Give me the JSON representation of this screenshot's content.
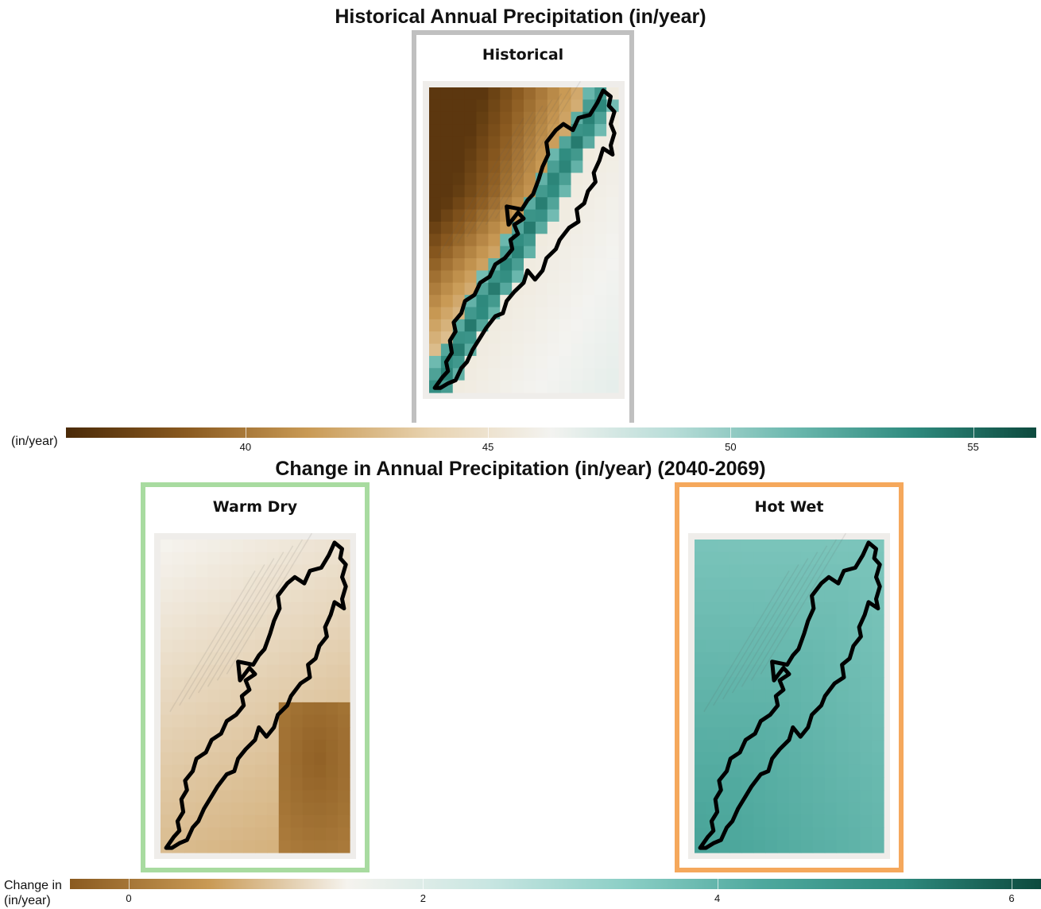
{
  "titles": {
    "historical": "Historical Annual Precipitation (in/year)",
    "change": "Change in Annual Precipitation (in/year) (2040-2069)"
  },
  "panels": {
    "historical": {
      "label": "Historical",
      "border_color": "#c0c0c0"
    },
    "warm_dry": {
      "label": "Warm Dry",
      "border_color": "#a8dba0"
    },
    "hot_wet": {
      "label": "Hot Wet",
      "border_color": "#f5a85c"
    }
  },
  "legends": {
    "historical": {
      "title": "(in/year)",
      "range": [
        36.3,
        56.3
      ],
      "ticks": [
        {
          "value": 40,
          "label": "40"
        },
        {
          "value": 45,
          "label": "45"
        },
        {
          "value": 50,
          "label": "50"
        },
        {
          "value": 55,
          "label": "55"
        }
      ],
      "colors": [
        "#4a2a08",
        "#8a5a20",
        "#c99a55",
        "#e8d3b0",
        "#f3f3f0",
        "#b8ddd8",
        "#6bb8ae",
        "#2e8a7e",
        "#0d4a3e"
      ]
    },
    "change": {
      "title_line1": "Change in",
      "title_line2": "(in/year)",
      "range": [
        -0.4,
        6.2
      ],
      "ticks": [
        {
          "value": 0,
          "label": "0"
        },
        {
          "value": 2,
          "label": "2"
        },
        {
          "value": 4,
          "label": "4"
        },
        {
          "value": 6,
          "label": "6"
        }
      ],
      "colors": [
        "#8a5a20",
        "#c99a55",
        "#f5f3ee",
        "#c9e6e2",
        "#8ccfc6",
        "#4ea89d",
        "#2e8a7e",
        "#0d4a3e"
      ]
    }
  },
  "chart_data": [
    {
      "type": "heatmap",
      "title": "Historical Annual Precipitation (in/year)",
      "panel": "Historical",
      "units": "in/year",
      "color_range": [
        36.3,
        56.3
      ],
      "pattern": "drier (35-42) in northwest, wettest (50-55) along outlined ridge, moderate (44-47) in southeast"
    },
    {
      "type": "heatmap",
      "title": "Change in Annual Precipitation (in/year) (2040-2069)",
      "panel": "Warm Dry",
      "units": "in/year",
      "color_range": [
        -0.4,
        6.2
      ],
      "pattern": "small increases (~1-2) over most of area, decreases (~-0.3) in southeast block"
    },
    {
      "type": "heatmap",
      "title": "Change in Annual Precipitation (in/year) (2040-2069)",
      "panel": "Hot Wet",
      "units": "in/year",
      "color_range": [
        -0.4,
        6.2
      ],
      "pattern": "increases of ~3.5-4.5 everywhere, largest in southwest"
    }
  ]
}
